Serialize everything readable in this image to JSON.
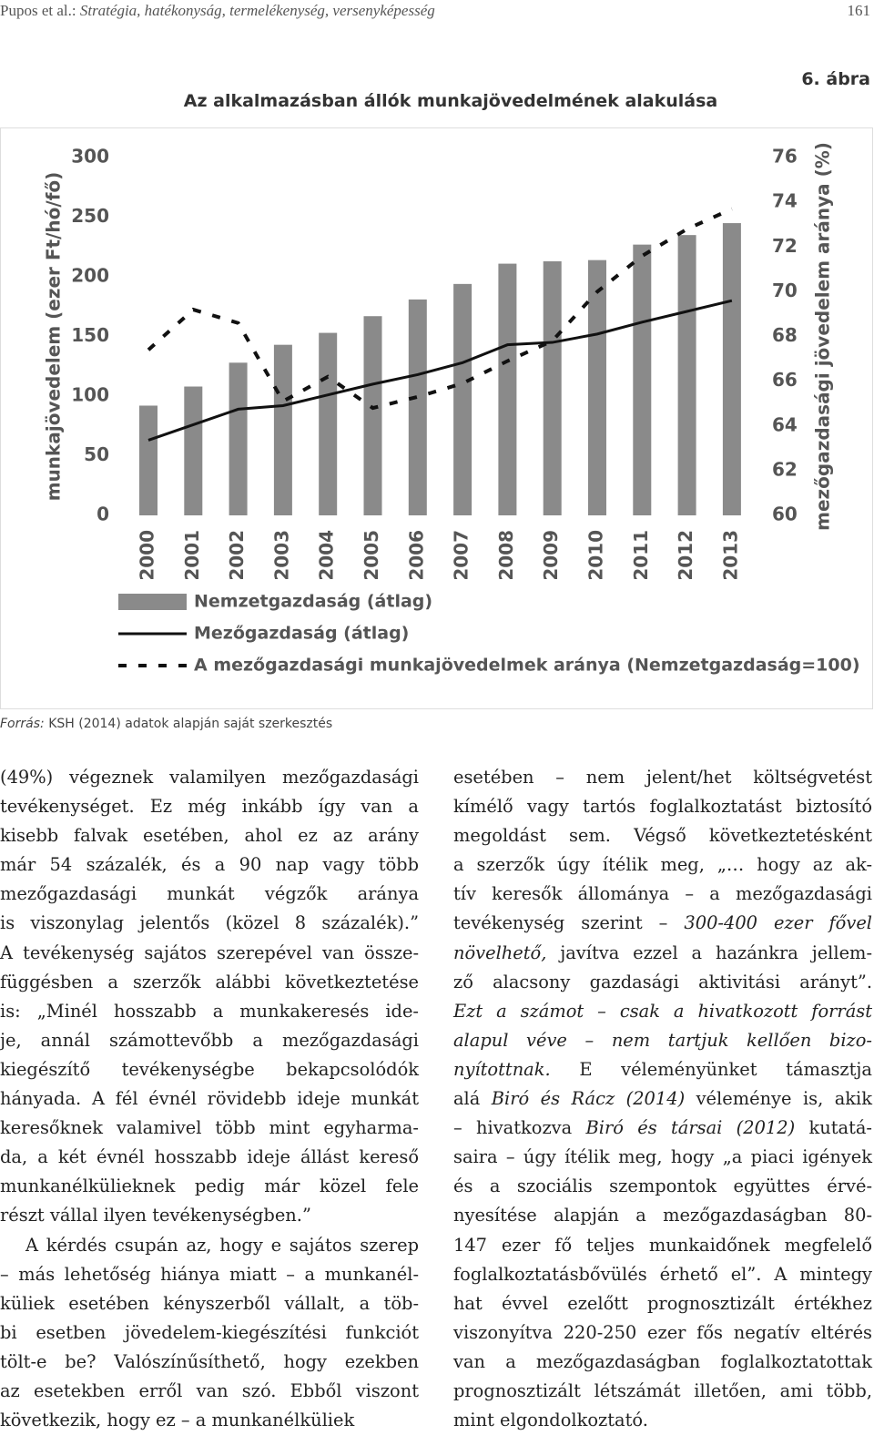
{
  "header": {
    "authors": "Pupos et al.:",
    "running_title": "Stratégia, hatékonyság, termelékenység, versenyképesség",
    "page": "161"
  },
  "figure": {
    "label": "6. ábra",
    "title": "Az alkalmazásban állók munkajövedelmének alakulása",
    "source_label": "Forrás:",
    "source": "KSH (2014) adatok alapján saját szerkesztés"
  },
  "chart_data": {
    "type": "bar",
    "categories": [
      "2000",
      "2001",
      "2002",
      "2003",
      "2004",
      "2005",
      "2006",
      "2007",
      "2008",
      "2009",
      "2010",
      "2011",
      "2012",
      "2013"
    ],
    "ylabel": "munkajövedelem (ezer Ft/hó/fő)",
    "y2label": "mezőgazdasági jövedelem aránya (%)",
    "ylim": [
      0,
      300
    ],
    "yticks": [
      0,
      50,
      100,
      150,
      200,
      250,
      300
    ],
    "y2lim": [
      60,
      76
    ],
    "y2ticks": [
      60,
      62,
      64,
      66,
      68,
      70,
      72,
      74,
      76
    ],
    "series": [
      {
        "name": "Nemzetgazdaság (átlag)",
        "type": "bar",
        "color": "#8a8a8a",
        "values": [
          92,
          108,
          128,
          143,
          153,
          167,
          181,
          194,
          211,
          213,
          214,
          227,
          235,
          245
        ]
      },
      {
        "name": "Mezőgazdaság (átlag)",
        "type": "line",
        "style": "solid",
        "color": "#111111",
        "values": [
          63,
          76,
          89,
          92,
          101,
          110,
          118,
          128,
          143,
          145,
          152,
          162,
          171,
          180
        ]
      },
      {
        "name": "A mezőgazdasági munkajövedelmek aránya (Nemzetgazdaság=100)",
        "type": "line",
        "style": "dashed",
        "axis": "y2",
        "color": "#111111",
        "values": [
          67.4,
          69.2,
          68.6,
          65.1,
          66.2,
          64.8,
          65.3,
          65.9,
          66.9,
          67.8,
          70.0,
          71.6,
          72.8,
          73.7
        ]
      }
    ]
  },
  "body": {
    "columns": [
      [
        {
          "lines": [
            "(49%) végeznek valamilyen mezőgazdasági",
            "tevékenységet. Ez még inkább így van a",
            "kisebb falvak esetében, ahol ez az arány",
            "már 54 százalék, és a 90 nap vagy több",
            "mezőgazdasági munkát végzők aránya",
            "is viszonylag jelentős (közel 8 százalék).”",
            "A tevékenység sajátos szerepével van össze-",
            "függésben a szerzők alábbi következtetése",
            "is: „Minél hosszabb a munkakeresés ide-",
            "je, annál számottevőbb a mezőgazdasági",
            "kiegészítő tevékenységbe bekapcsolódók",
            "hányada. A fél évnél rövidebb ideje munkát",
            "keresőknek valamivel több mint egyharma-",
            "da, a két évnél hosszabb ideje állást kereső",
            "munkanélkülieknek pedig már közel fele",
            "részt vállal ilyen tevékenységben.”"
          ]
        },
        {
          "indent": true,
          "lines": [
            "A kérdés csupán az, hogy e sajátos szerep",
            "– más lehetőség hiánya miatt – a munkanél-",
            "küliek esetében kényszerből vállalt, a töb-",
            "bi esetben jövedelem-kiegészítési funkciót",
            "tölt-e be? Valószínűsíthető, hogy ezekben",
            "az esetekben erről van szó. Ebből viszont",
            "következik, hogy ez – a munkanélküliek"
          ]
        }
      ],
      [
        {
          "lines": [
            "esetében – nem jelent/het költségvetést",
            "kímélő vagy tartós foglalkoztatást biztosító",
            "megoldást sem. Végső következtetésként",
            "a szerzők úgy ítélik meg, „… hogy az ak-",
            "tív keresők állománya – a mezőgazdasági",
            [
              "tevékenység szerint – ",
              {
                "text": "300-400 ezer fővel",
                "italic": true
              }
            ],
            [
              {
                "text": "növelhető,",
                "italic": true
              },
              " javítva ezzel a hazánkra jellem-"
            ],
            "ző alacsony gazdasági aktivitási arányt”.",
            [
              {
                "text": "Ezt a számot – csak a hivatkozott forrást",
                "italic": true
              }
            ],
            [
              {
                "text": "alapul véve – nem tartjuk kellően bizo-",
                "italic": true
              }
            ],
            [
              {
                "text": "nyítottnak.",
                "italic": true
              },
              " E véleményünket támasztja"
            ],
            [
              "alá ",
              {
                "text": "Biró és Rácz (2014)",
                "italic": true
              },
              " véleménye is, akik"
            ],
            [
              "– hivatkozva ",
              {
                "text": "Biró és társai (2012)",
                "italic": true
              },
              " kutatá-"
            ],
            "saira – úgy ítélik meg, hogy „a piaci igények",
            "és a szociális szempontok együttes érvé-",
            "nyesítése alapján a mezőgazdaságban 80-",
            "147 ezer fő teljes munkaidőnek megfelelő",
            "foglalkoztatásbővülés érhető el”. A mintegy",
            "hat évvel ezelőtt prognosztizált értékhez",
            "viszonyítva 220-250 ezer fős negatív eltérés",
            "van a mezőgazdaságban foglalkoztatottak",
            "prognosztizált létszámát illetően, ami több,",
            "mint elgondolkoztató."
          ]
        }
      ]
    ]
  }
}
